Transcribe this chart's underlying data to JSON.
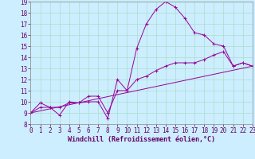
{
  "xlabel": "Windchill (Refroidissement éolien,°C)",
  "bg_color": "#cceeff",
  "grid_color": "#aaddcc",
  "line_color": "#990099",
  "xmin": 0,
  "xmax": 23,
  "ymin": 8,
  "ymax": 19,
  "yticks": [
    8,
    9,
    10,
    11,
    12,
    13,
    14,
    15,
    16,
    17,
    18,
    19
  ],
  "xticks": [
    0,
    1,
    2,
    3,
    4,
    5,
    6,
    7,
    8,
    9,
    10,
    11,
    12,
    13,
    14,
    15,
    16,
    17,
    18,
    19,
    20,
    21,
    22,
    23
  ],
  "series": [
    {
      "x": [
        0,
        1,
        2,
        3,
        4,
        5,
        6,
        7,
        8,
        9,
        10,
        11,
        12,
        13,
        14,
        15,
        16,
        17,
        18,
        19,
        20,
        21,
        22,
        23
      ],
      "y": [
        9,
        9.9,
        9.5,
        8.8,
        10.0,
        9.9,
        10.0,
        10.0,
        8.5,
        12.0,
        11.0,
        14.8,
        17.0,
        18.3,
        19.0,
        18.5,
        17.5,
        16.2,
        16.0,
        15.2,
        15.0,
        13.2,
        13.5,
        13.2
      ]
    },
    {
      "x": [
        0,
        1,
        2,
        3,
        4,
        5,
        6,
        7,
        8,
        9,
        10,
        11,
        12,
        13,
        14,
        15,
        16,
        17,
        18,
        19,
        20,
        21,
        22,
        23
      ],
      "y": [
        9.0,
        9.5,
        9.5,
        9.5,
        9.9,
        9.9,
        10.5,
        10.5,
        9.0,
        11.0,
        11.0,
        12.0,
        12.3,
        12.8,
        13.2,
        13.5,
        13.5,
        13.5,
        13.8,
        14.2,
        14.5,
        13.2,
        13.5,
        13.2
      ]
    },
    {
      "x": [
        0,
        23
      ],
      "y": [
        9.0,
        13.2
      ]
    }
  ],
  "tick_fontsize": 5.5,
  "xlabel_fontsize": 6.0,
  "line_width": 0.7,
  "marker_size": 2.5
}
